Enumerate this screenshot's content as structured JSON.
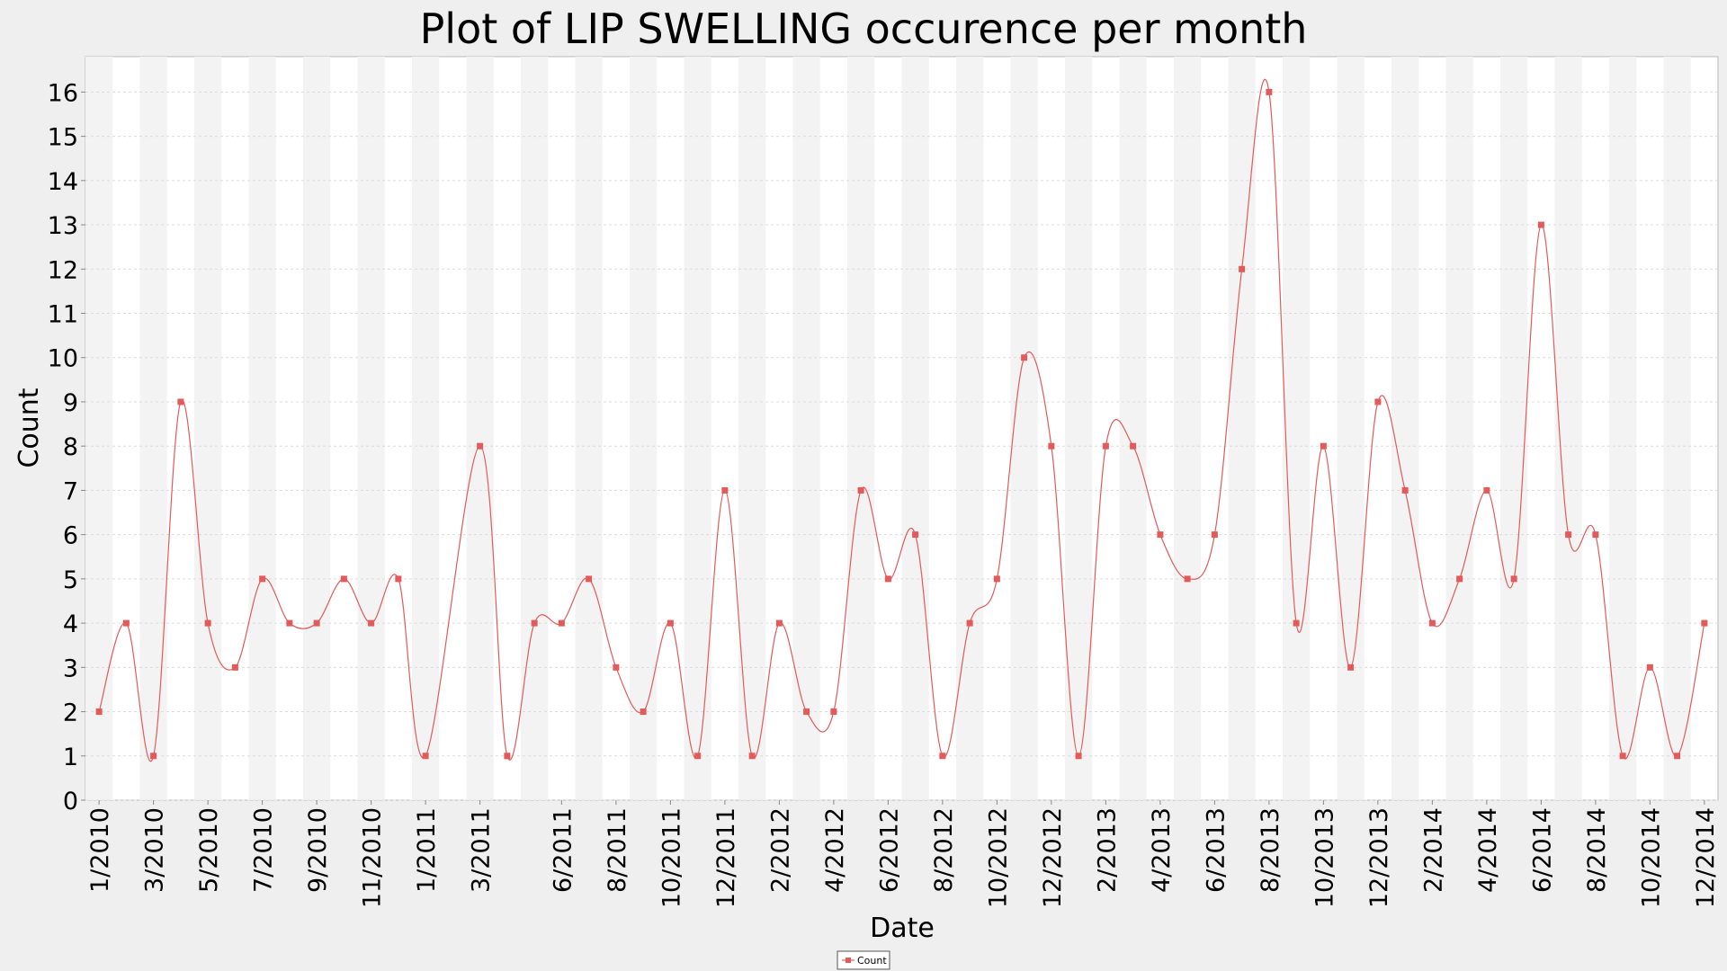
{
  "chart_data": {
    "type": "line",
    "title": "Plot of LIP SWELLING occurence per month",
    "xlabel": "Date",
    "ylabel": "Count",
    "ylim": [
      0,
      16.8
    ],
    "yticks": [
      0,
      1,
      2,
      3,
      4,
      5,
      6,
      7,
      8,
      9,
      10,
      11,
      12,
      13,
      14,
      15,
      16
    ],
    "grid": true,
    "legend_position": "bottom-center",
    "series_color": "#e35a5a",
    "x": [
      "1/2010",
      "2/2010",
      "3/2010",
      "4/2010",
      "5/2010",
      "6/2010",
      "7/2010",
      "8/2010",
      "9/2010",
      "10/2010",
      "11/2010",
      "12/2010",
      "1/2011",
      "3/2011",
      "4/2011",
      "5/2011",
      "6/2011",
      "7/2011",
      "8/2011",
      "9/2011",
      "10/2011",
      "11/2011",
      "12/2011",
      "1/2012",
      "2/2012",
      "3/2012",
      "4/2012",
      "5/2012",
      "6/2012",
      "7/2012",
      "8/2012",
      "9/2012",
      "10/2012",
      "11/2012",
      "12/2012",
      "1/2013",
      "2/2013",
      "3/2013",
      "4/2013",
      "5/2013",
      "6/2013",
      "7/2013",
      "8/2013",
      "9/2013",
      "10/2013",
      "11/2013",
      "12/2013",
      "1/2014",
      "2/2014",
      "3/2014",
      "4/2014",
      "5/2014",
      "6/2014",
      "7/2014",
      "8/2014",
      "9/2014",
      "10/2014",
      "11/2014",
      "12/2014"
    ],
    "xtick_labels": [
      "1/2010",
      "3/2010",
      "5/2010",
      "7/2010",
      "9/2010",
      "11/2010",
      "1/2011",
      "3/2011",
      "6/2011",
      "8/2011",
      "10/2011",
      "12/2011",
      "2/2012",
      "4/2012",
      "6/2012",
      "8/2012",
      "10/2012",
      "12/2012",
      "2/2013",
      "4/2013",
      "6/2013",
      "8/2013",
      "10/2013",
      "12/2013",
      "2/2014",
      "4/2014",
      "6/2014",
      "8/2014",
      "10/2014",
      "12/2014"
    ],
    "series": [
      {
        "name": "Count",
        "values": [
          2,
          4,
          1,
          9,
          4,
          3,
          5,
          4,
          4,
          5,
          4,
          5,
          1,
          8,
          1,
          4,
          4,
          5,
          3,
          2,
          4,
          1,
          7,
          1,
          4,
          2,
          2,
          7,
          5,
          6,
          1,
          4,
          5,
          10,
          8,
          1,
          8,
          8,
          6,
          5,
          6,
          12,
          16,
          4,
          8,
          3,
          9,
          7,
          4,
          5,
          7,
          5,
          13,
          6,
          6,
          1,
          3,
          1,
          4
        ]
      }
    ]
  }
}
